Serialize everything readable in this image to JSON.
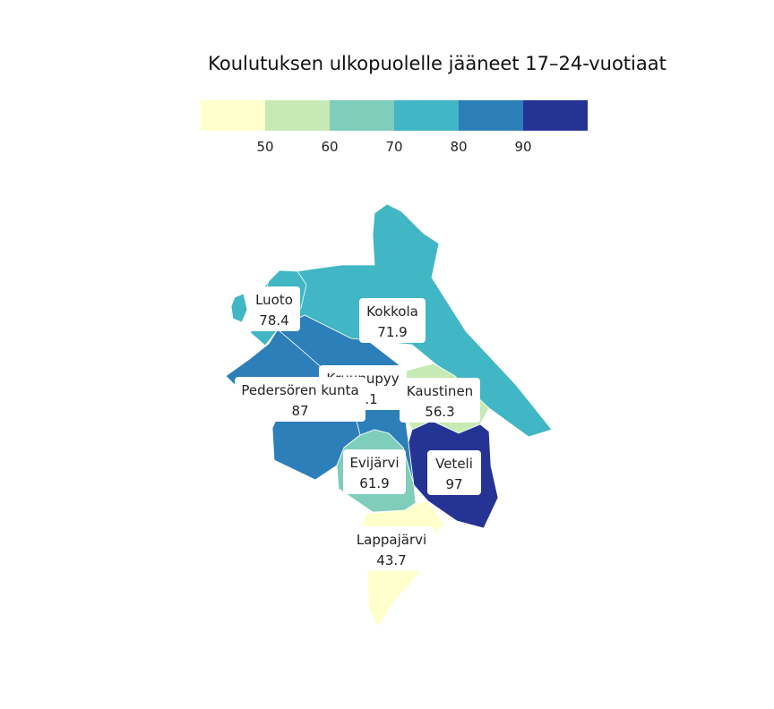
{
  "title": "Koulutuksen ulkopuolelle jääneet 17–24-vuotiaat",
  "legend": {
    "bins": [
      {
        "color": "#ffffcc"
      },
      {
        "color": "#c7e9b4"
      },
      {
        "color": "#7fcdbb"
      },
      {
        "color": "#41b6c4"
      },
      {
        "color": "#2c7fb8"
      },
      {
        "color": "#253494"
      }
    ],
    "ticks": [
      "50",
      "60",
      "70",
      "80",
      "90"
    ]
  },
  "regions": [
    {
      "id": "kokkola",
      "name": "Kokkola",
      "value": "71.9",
      "color": "#41b6c4"
    },
    {
      "id": "luoto",
      "name": "Luoto",
      "value": "78.4",
      "color": "#41b6c4"
    },
    {
      "id": "pedersore",
      "name": "Pedersören kunta",
      "value": "87",
      "color": "#2c7fb8"
    },
    {
      "id": "kruunupyy",
      "name": "Kruunupyy",
      "value": "82.1",
      "color": "#2c7fb8"
    },
    {
      "id": "kaustinen",
      "name": "Kaustinen",
      "value": "56.3",
      "color": "#c7e9b4"
    },
    {
      "id": "veteli",
      "name": "Veteli",
      "value": "97",
      "color": "#253494"
    },
    {
      "id": "evijarvi",
      "name": "Evijärvi",
      "value": "61.9",
      "color": "#7fcdbb"
    },
    {
      "id": "lappajarvi",
      "name": "Lappajärvi",
      "value": "43.7",
      "color": "#ffffcc"
    }
  ]
}
